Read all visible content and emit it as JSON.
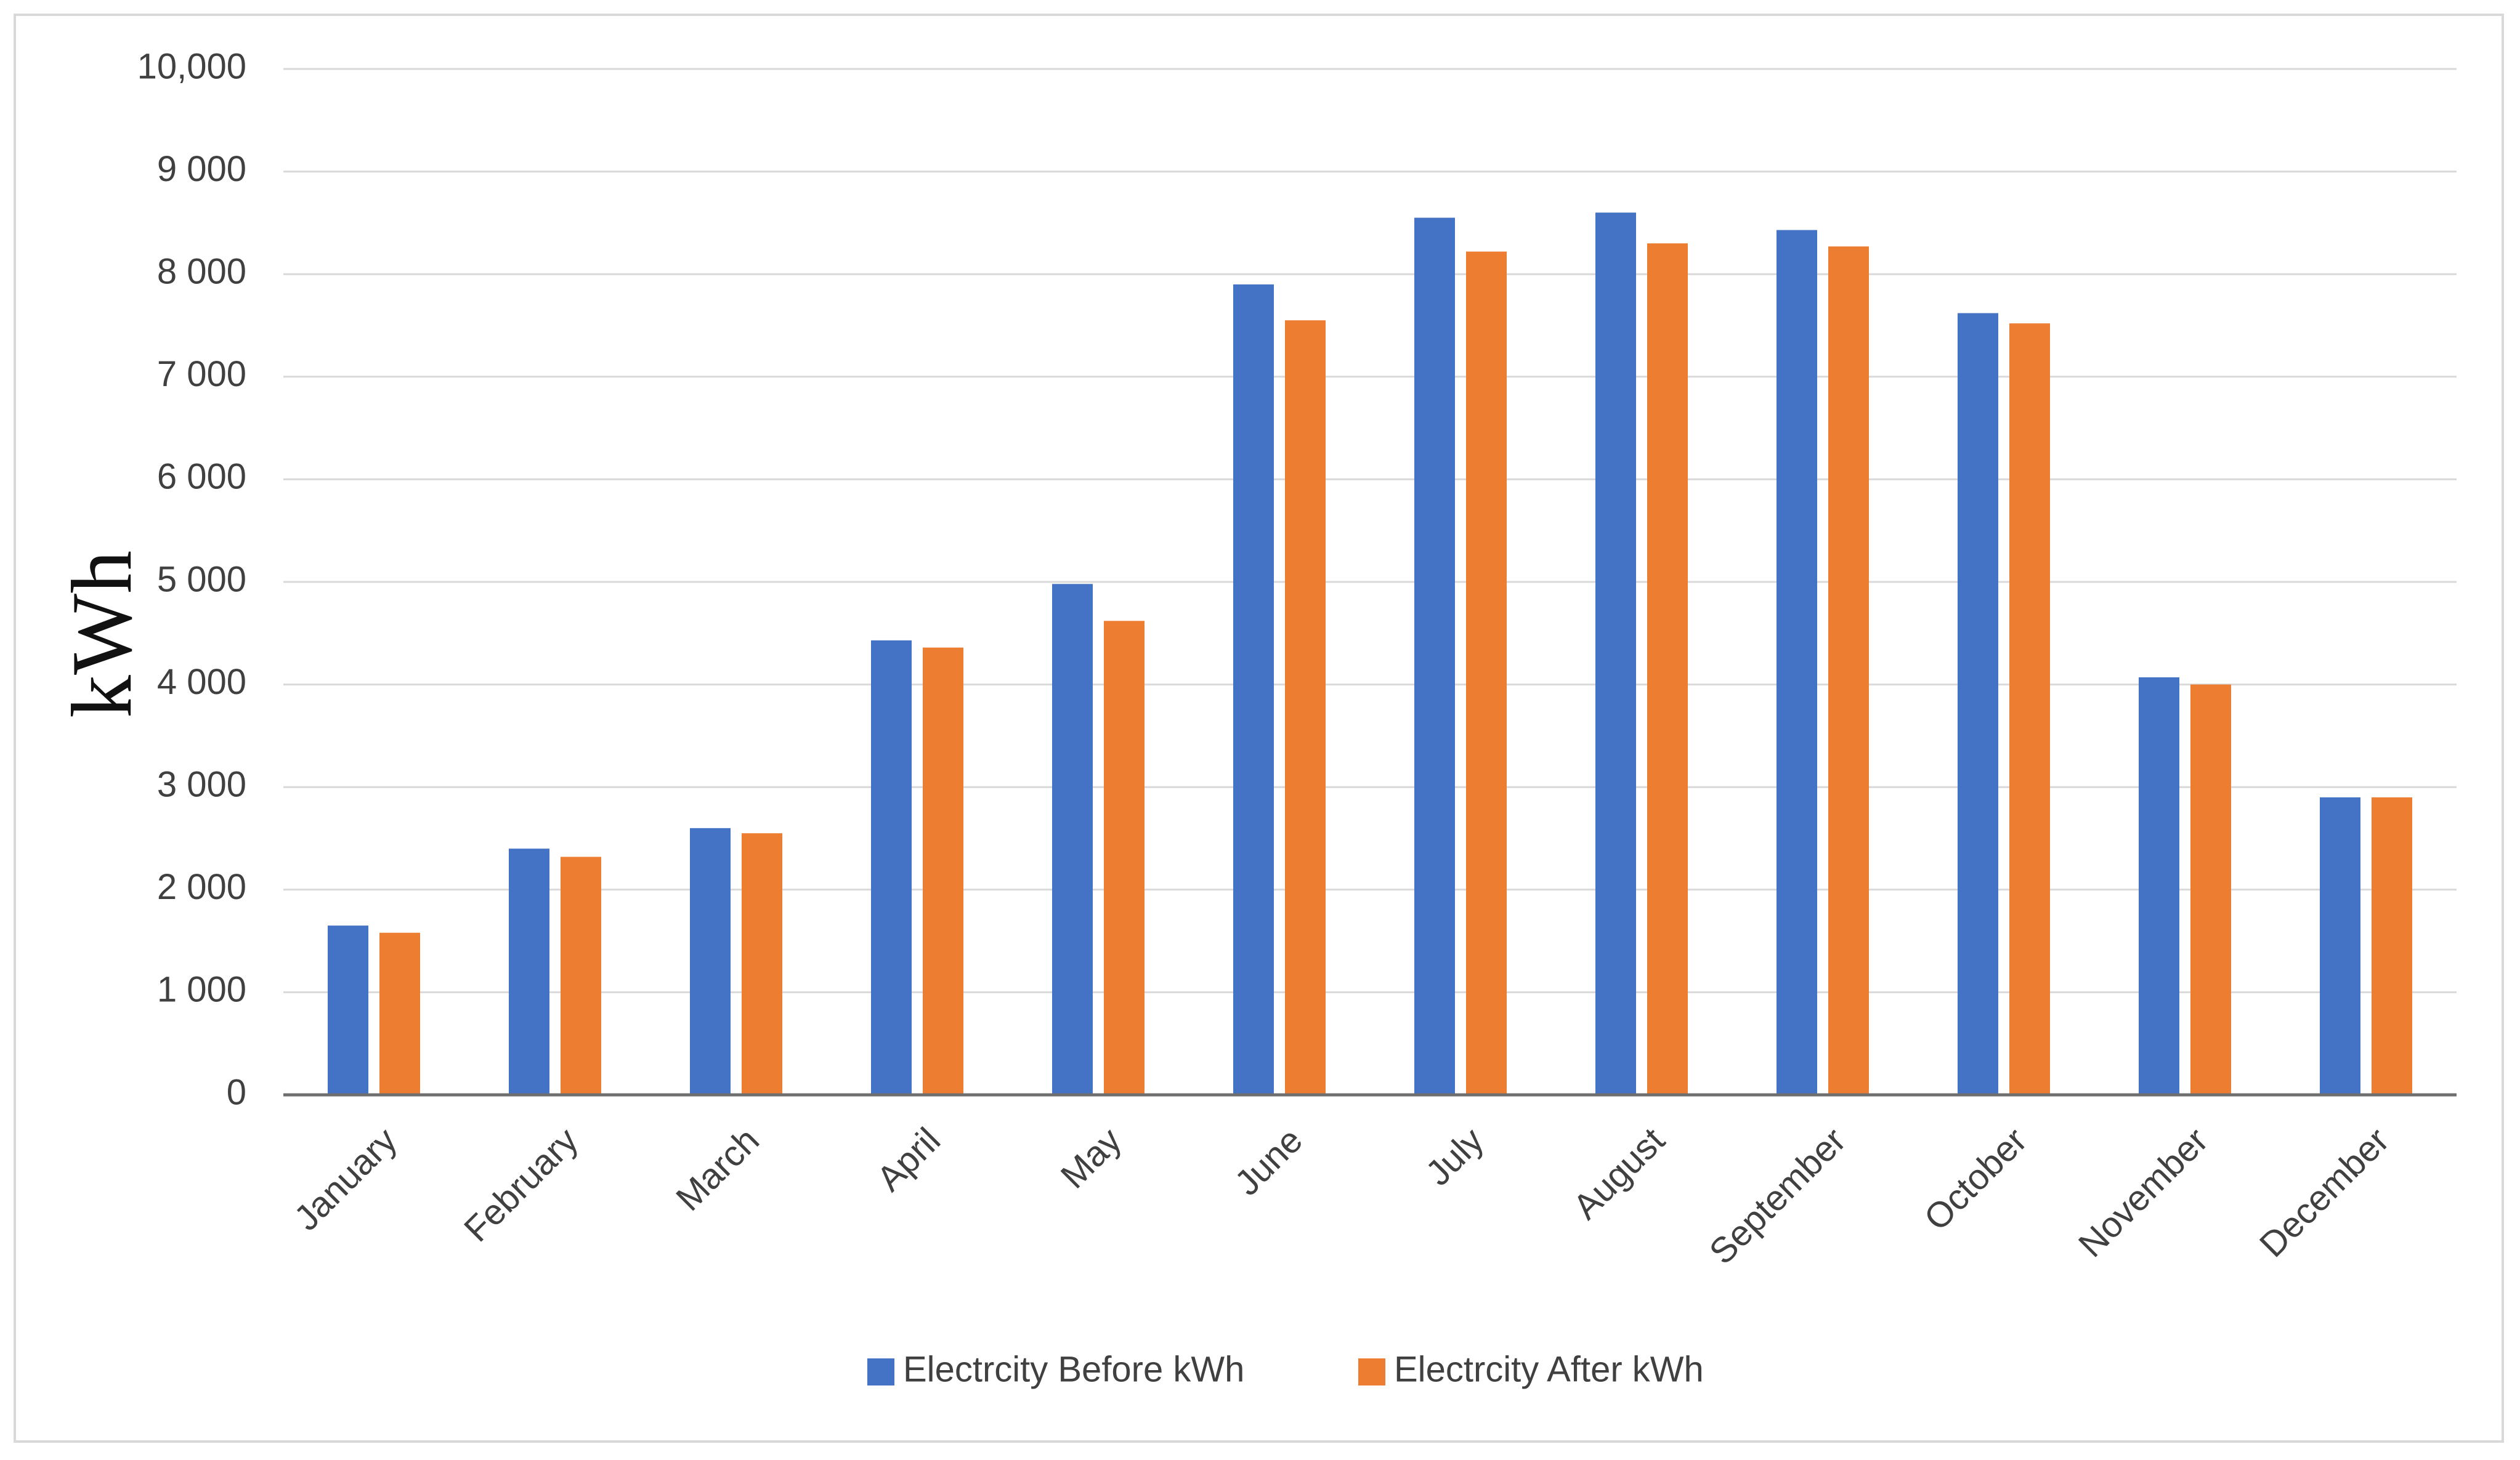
{
  "chart_data": {
    "type": "bar",
    "ylabel": "kWh",
    "xlabel": "",
    "ylim": [
      0,
      10000
    ],
    "y_ticks": [
      {
        "value": 0,
        "label": "0"
      },
      {
        "value": 1000,
        "label": "1 000"
      },
      {
        "value": 2000,
        "label": "2 000"
      },
      {
        "value": 3000,
        "label": "3 000"
      },
      {
        "value": 4000,
        "label": "4 000"
      },
      {
        "value": 5000,
        "label": "5 000"
      },
      {
        "value": 6000,
        "label": "6 000"
      },
      {
        "value": 7000,
        "label": "7 000"
      },
      {
        "value": 8000,
        "label": "8 000"
      },
      {
        "value": 9000,
        "label": "9 000"
      },
      {
        "value": 10000,
        "label": "10,000"
      }
    ],
    "grid": true,
    "legend_position": "bottom",
    "categories": [
      "January",
      "February",
      "March",
      "April",
      "May",
      "June",
      "July",
      "August",
      "September",
      "October",
      "November",
      "December"
    ],
    "series": [
      {
        "name": "Electrcity Before kWh",
        "color": "#4472C4",
        "values": [
          1650,
          2400,
          2600,
          4430,
          4980,
          7900,
          8550,
          8600,
          8430,
          7620,
          4070,
          2900
        ]
      },
      {
        "name": "Electrcity After kWh",
        "color": "#ED7D31",
        "values": [
          1580,
          2320,
          2550,
          4360,
          4620,
          7550,
          8220,
          8300,
          8270,
          7520,
          4000,
          2900
        ]
      }
    ]
  }
}
